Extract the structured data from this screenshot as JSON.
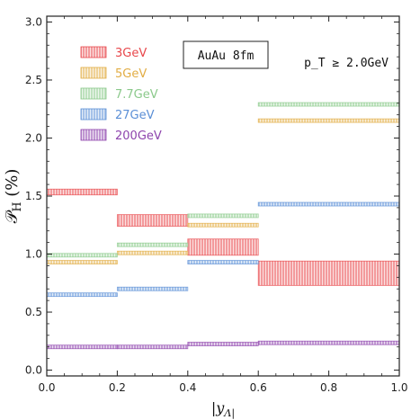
{
  "chart_data": {
    "type": "bar",
    "chart_kind": "binned bands with uncertainty",
    "xlabel": "|y_Λ|",
    "ylabel": "𝒫_H (%)",
    "xlim": [
      0.0,
      1.0
    ],
    "ylim": [
      -0.05,
      3.05
    ],
    "xticks": [
      0.0,
      0.2,
      0.4,
      0.6,
      0.8,
      1.0
    ],
    "yticks": [
      0.0,
      0.5,
      1.0,
      1.5,
      2.0,
      2.5,
      3.0
    ],
    "xtick_labels": [
      "0.0",
      "0.2",
      "0.4",
      "0.6",
      "0.8",
      "1.0"
    ],
    "ytick_labels": [
      "0.0",
      "0.5",
      "1.0",
      "1.5",
      "2.0",
      "2.5",
      "3.0"
    ],
    "grid": false,
    "legend_position": "top-left",
    "annotation_box": "AuAu 8fm",
    "annotation_corner": "p_T ≥ 2.0GeV",
    "series": [
      {
        "name": "3GeV",
        "color": "#e8474b",
        "bins": [
          {
            "x": [
              0.0,
              0.2
            ],
            "y": [
              1.51,
              1.56
            ]
          },
          {
            "x": [
              0.2,
              0.4
            ],
            "y": [
              1.24,
              1.34
            ]
          },
          {
            "x": [
              0.4,
              0.6
            ],
            "y": [
              0.99,
              1.13
            ]
          },
          {
            "x": [
              0.6,
              1.0
            ],
            "y": [
              0.73,
              0.94
            ]
          }
        ]
      },
      {
        "name": "5GeV",
        "color": "#e2ad44",
        "bins": [
          {
            "x": [
              0.0,
              0.2
            ],
            "y": [
              0.92,
              0.94
            ]
          },
          {
            "x": [
              0.2,
              0.4
            ],
            "y": [
              1.0,
              1.02
            ]
          },
          {
            "x": [
              0.4,
              0.6
            ],
            "y": [
              1.24,
              1.26
            ]
          },
          {
            "x": [
              0.6,
              1.0
            ],
            "y": [
              2.14,
              2.16
            ]
          }
        ]
      },
      {
        "name": "7.7GeV",
        "color": "#8bc98b",
        "bins": [
          {
            "x": [
              0.0,
              0.2
            ],
            "y": [
              0.98,
              1.0
            ]
          },
          {
            "x": [
              0.2,
              0.4
            ],
            "y": [
              1.07,
              1.09
            ]
          },
          {
            "x": [
              0.4,
              0.6
            ],
            "y": [
              1.32,
              1.34
            ]
          },
          {
            "x": [
              0.6,
              1.0
            ],
            "y": [
              2.28,
              2.3
            ]
          }
        ]
      },
      {
        "name": "27GeV",
        "color": "#5b8fd6",
        "bins": [
          {
            "x": [
              0.0,
              0.2
            ],
            "y": [
              0.64,
              0.66
            ]
          },
          {
            "x": [
              0.2,
              0.4
            ],
            "y": [
              0.69,
              0.71
            ]
          },
          {
            "x": [
              0.4,
              0.6
            ],
            "y": [
              0.92,
              0.94
            ]
          },
          {
            "x": [
              0.6,
              1.0
            ],
            "y": [
              1.42,
              1.44
            ]
          }
        ]
      },
      {
        "name": "200GeV",
        "color": "#8e44ad",
        "bins": [
          {
            "x": [
              0.0,
              0.2
            ],
            "y": [
              0.19,
              0.21
            ]
          },
          {
            "x": [
              0.2,
              0.4
            ],
            "y": [
              0.19,
              0.21
            ]
          },
          {
            "x": [
              0.4,
              0.6
            ],
            "y": [
              0.21,
              0.24
            ]
          },
          {
            "x": [
              0.6,
              1.0
            ],
            "y": [
              0.22,
              0.25
            ]
          }
        ]
      }
    ]
  }
}
